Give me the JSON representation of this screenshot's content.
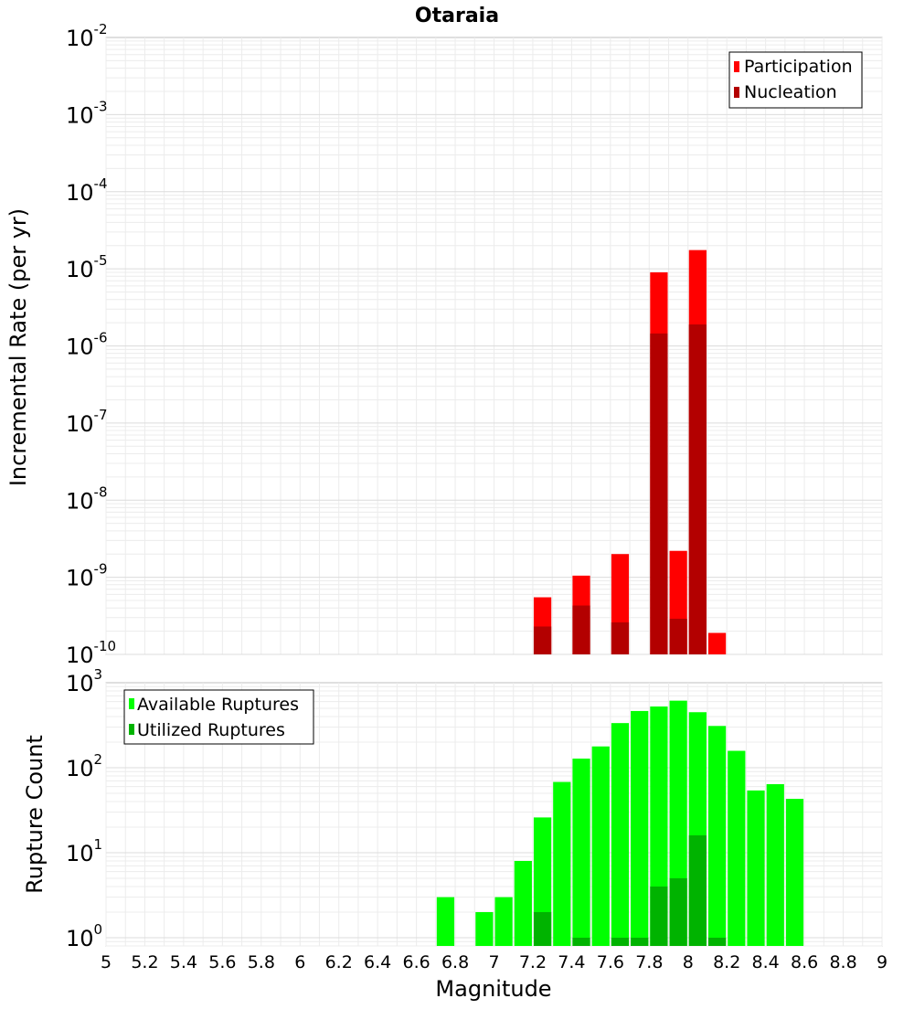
{
  "chart_data": [
    {
      "type": "bar",
      "title": "Otaraia",
      "xlabel": "",
      "ylabel": "Incremental Rate (per yr)",
      "xlim": [
        5,
        9
      ],
      "ylim": [
        1e-10,
        0.01
      ],
      "yscale": "log",
      "grid": true,
      "legend_position": "top-right",
      "y_tick_labels": [
        {
          "base": "10",
          "exp": "-10",
          "value": 1e-10
        },
        {
          "base": "10",
          "exp": "-9",
          "value": 1e-09
        },
        {
          "base": "10",
          "exp": "-8",
          "value": 1e-08
        },
        {
          "base": "10",
          "exp": "-7",
          "value": 1e-07
        },
        {
          "base": "10",
          "exp": "-6",
          "value": 1e-06
        },
        {
          "base": "10",
          "exp": "-5",
          "value": 1e-05
        },
        {
          "base": "10",
          "exp": "-4",
          "value": 0.0001
        },
        {
          "base": "10",
          "exp": "-3",
          "value": 0.001
        },
        {
          "base": "10",
          "exp": "-2",
          "value": 0.01
        }
      ],
      "series": [
        {
          "name": "Participation",
          "color": "#ff0000",
          "points": [
            {
              "x": 7.25,
              "y": 5.5e-10
            },
            {
              "x": 7.45,
              "y": 1.05e-09
            },
            {
              "x": 7.65,
              "y": 2e-09
            },
            {
              "x": 7.85,
              "y": 9e-06
            },
            {
              "x": 7.95,
              "y": 2.2e-09
            },
            {
              "x": 8.05,
              "y": 1.75e-05
            },
            {
              "x": 8.15,
              "y": 1.9e-10
            }
          ]
        },
        {
          "name": "Nucleation",
          "color": "#b30000",
          "points": [
            {
              "x": 7.25,
              "y": 2.3e-10
            },
            {
              "x": 7.45,
              "y": 4.3e-10
            },
            {
              "x": 7.65,
              "y": 2.6e-10
            },
            {
              "x": 7.85,
              "y": 1.45e-06
            },
            {
              "x": 7.95,
              "y": 2.9e-10
            },
            {
              "x": 8.05,
              "y": 1.9e-06
            }
          ]
        }
      ]
    },
    {
      "type": "bar",
      "title": "",
      "xlabel": "Magnitude",
      "ylabel": "Rupture Count",
      "xlim": [
        5,
        9
      ],
      "ylim": [
        0.8,
        1000
      ],
      "yscale": "log",
      "grid": true,
      "legend_position": "top-left",
      "x_tick_labels": [
        "5",
        "5.2",
        "5.4",
        "5.6",
        "5.8",
        "6",
        "6.2",
        "6.4",
        "6.6",
        "6.8",
        "7",
        "7.2",
        "7.4",
        "7.6",
        "7.8",
        "8",
        "8.2",
        "8.4",
        "8.6",
        "8.8",
        "9"
      ],
      "y_tick_labels": [
        {
          "base": "10",
          "exp": "0",
          "value": 1
        },
        {
          "base": "10",
          "exp": "1",
          "value": 10
        },
        {
          "base": "10",
          "exp": "2",
          "value": 100
        },
        {
          "base": "10",
          "exp": "3",
          "value": 1000
        }
      ],
      "series": [
        {
          "name": "Available Ruptures",
          "color": "#00ff00",
          "points": [
            {
              "x": 6.75,
              "y": 3
            },
            {
              "x": 6.95,
              "y": 2
            },
            {
              "x": 7.05,
              "y": 3
            },
            {
              "x": 7.15,
              "y": 8
            },
            {
              "x": 7.25,
              "y": 26
            },
            {
              "x": 7.35,
              "y": 68
            },
            {
              "x": 7.45,
              "y": 128
            },
            {
              "x": 7.55,
              "y": 178
            },
            {
              "x": 7.65,
              "y": 335
            },
            {
              "x": 7.75,
              "y": 465
            },
            {
              "x": 7.85,
              "y": 525
            },
            {
              "x": 7.95,
              "y": 615
            },
            {
              "x": 8.05,
              "y": 450
            },
            {
              "x": 8.15,
              "y": 310
            },
            {
              "x": 8.25,
              "y": 158
            },
            {
              "x": 8.35,
              "y": 54
            },
            {
              "x": 8.45,
              "y": 64
            },
            {
              "x": 8.55,
              "y": 43
            }
          ]
        },
        {
          "name": "Utilized Ruptures",
          "color": "#00b300",
          "points": [
            {
              "x": 7.25,
              "y": 2
            },
            {
              "x": 7.45,
              "y": 1
            },
            {
              "x": 7.65,
              "y": 1
            },
            {
              "x": 7.75,
              "y": 1
            },
            {
              "x": 7.85,
              "y": 4
            },
            {
              "x": 7.95,
              "y": 5
            },
            {
              "x": 8.05,
              "y": 16
            },
            {
              "x": 8.15,
              "y": 1
            }
          ]
        }
      ]
    }
  ]
}
